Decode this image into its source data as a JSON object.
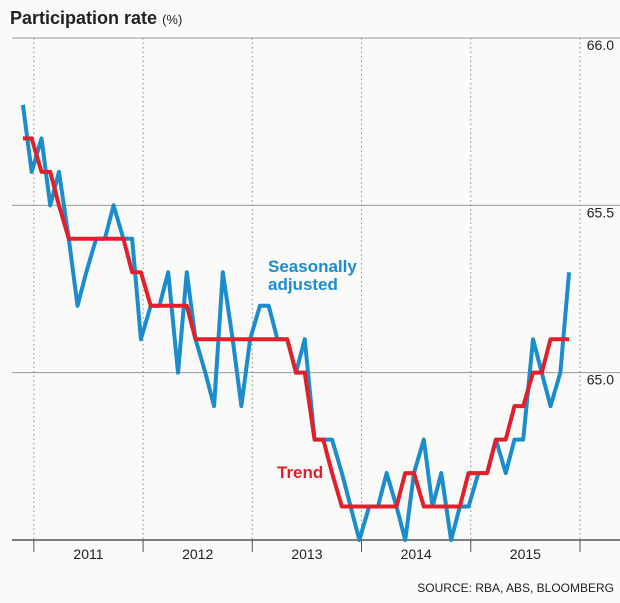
{
  "chart_data": {
    "type": "line",
    "title": "Participation rate",
    "unit": "(%)",
    "source": "SOURCE: RBA, ABS, BLOOMBERG",
    "x": [
      2010.9,
      2010.98,
      2011.07,
      2011.15,
      2011.23,
      2011.32,
      2011.4,
      2011.48,
      2011.57,
      2011.65,
      2011.73,
      2011.82,
      2011.9,
      2011.98,
      2012.07,
      2012.15,
      2012.23,
      2012.32,
      2012.4,
      2012.48,
      2012.57,
      2012.65,
      2012.73,
      2012.82,
      2012.9,
      2012.98,
      2013.07,
      2013.15,
      2013.23,
      2013.32,
      2013.4,
      2013.48,
      2013.57,
      2013.65,
      2013.73,
      2013.82,
      2013.9,
      2013.98,
      2014.07,
      2014.15,
      2014.23,
      2014.32,
      2014.4,
      2014.48,
      2014.57,
      2014.65,
      2014.73,
      2014.82,
      2014.9,
      2014.98,
      2015.07,
      2015.15,
      2015.23,
      2015.32,
      2015.4,
      2015.48,
      2015.57,
      2015.65,
      2015.73,
      2015.82,
      2015.9
    ],
    "series": [
      {
        "name": "Seasonally adjusted",
        "color": "#1b8ccc",
        "values": [
          65.8,
          65.6,
          65.7,
          65.5,
          65.6,
          65.4,
          65.2,
          65.3,
          65.4,
          65.4,
          65.5,
          65.4,
          65.4,
          65.1,
          65.2,
          65.2,
          65.3,
          65.0,
          65.3,
          65.1,
          65.0,
          64.9,
          65.3,
          65.1,
          64.9,
          65.1,
          65.2,
          65.2,
          65.1,
          65.1,
          65.0,
          65.1,
          64.8,
          64.8,
          64.8,
          64.7,
          64.6,
          64.5,
          64.6,
          64.6,
          64.7,
          64.6,
          64.5,
          64.7,
          64.8,
          64.6,
          64.7,
          64.5,
          64.6,
          64.6,
          64.7,
          64.7,
          64.8,
          64.7,
          64.8,
          64.8,
          65.1,
          65.0,
          64.9,
          65.0,
          65.3
        ]
      },
      {
        "name": "Trend",
        "color": "#e2202c",
        "values": [
          65.7,
          65.7,
          65.6,
          65.6,
          65.5,
          65.4,
          65.4,
          65.4,
          65.4,
          65.4,
          65.4,
          65.4,
          65.3,
          65.3,
          65.2,
          65.2,
          65.2,
          65.2,
          65.2,
          65.1,
          65.1,
          65.1,
          65.1,
          65.1,
          65.1,
          65.1,
          65.1,
          65.1,
          65.1,
          65.1,
          65.0,
          65.0,
          64.8,
          64.8,
          64.7,
          64.6,
          64.6,
          64.6,
          64.6,
          64.6,
          64.6,
          64.6,
          64.7,
          64.7,
          64.6,
          64.6,
          64.6,
          64.6,
          64.6,
          64.7,
          64.7,
          64.7,
          64.8,
          64.8,
          64.9,
          64.9,
          65.0,
          65.0,
          65.1,
          65.1,
          65.1
        ]
      }
    ],
    "xlim": [
      2010.8,
      2016.0
    ],
    "xticks": [
      {
        "value": 2011.5,
        "label": "2011"
      },
      {
        "value": 2012.5,
        "label": "2012"
      },
      {
        "value": 2013.5,
        "label": "2013"
      },
      {
        "value": 2014.5,
        "label": "2014"
      },
      {
        "value": 2015.5,
        "label": "2015"
      }
    ],
    "xgrid": [
      2011,
      2012,
      2013,
      2014,
      2015,
      2016
    ],
    "ylim": [
      64.5,
      66.0
    ],
    "yticks": [
      {
        "value": 65,
        "label": "65.0"
      },
      65.5,
      {
        "value": 66,
        "label": "66.0"
      }
    ],
    "grid": true
  }
}
